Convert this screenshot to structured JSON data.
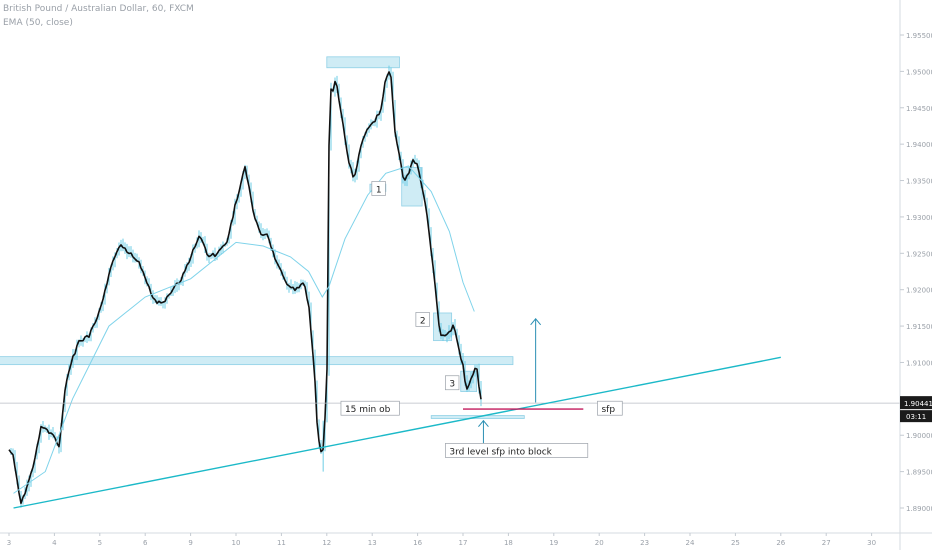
{
  "header": {
    "symbol": "British Pound / Australian Dollar, 60, FXCM",
    "indicator": "EMA (50, close)"
  },
  "chart_data": {
    "type": "candlestick",
    "yaxis": {
      "ticks": [
        "1.95500",
        "1.95000",
        "1.94500",
        "1.94000",
        "1.93500",
        "1.93000",
        "1.92500",
        "1.92000",
        "1.91500",
        "1.91000",
        "1.90500",
        "1.90000",
        "1.89500",
        "1.89000"
      ],
      "range": [
        1.8865,
        1.959
      ],
      "last_price": "1.90441",
      "countdown": "03:11"
    },
    "xaxis": {
      "ticks": [
        "3",
        "4",
        "5",
        "6",
        "9",
        "10",
        "11",
        "12",
        "13",
        "16",
        "17",
        "18",
        "19",
        "20",
        "23",
        "24",
        "25",
        "26",
        "27",
        "30"
      ]
    },
    "price_path": [
      [
        3.0,
        1.898
      ],
      [
        3.1,
        1.8972
      ],
      [
        3.25,
        1.8905
      ],
      [
        3.4,
        1.893
      ],
      [
        3.55,
        1.896
      ],
      [
        3.7,
        1.9012
      ],
      [
        3.85,
        1.9005
      ],
      [
        3.98,
        1.9
      ],
      [
        4.1,
        1.8985
      ],
      [
        4.25,
        1.907
      ],
      [
        4.4,
        1.9105
      ],
      [
        4.55,
        1.913
      ],
      [
        4.75,
        1.9135
      ],
      [
        4.95,
        1.916
      ],
      [
        5.1,
        1.9195
      ],
      [
        5.25,
        1.923
      ],
      [
        5.45,
        1.9265
      ],
      [
        5.65,
        1.925
      ],
      [
        5.85,
        1.924
      ],
      [
        6.0,
        1.9215
      ],
      [
        6.2,
        1.9185
      ],
      [
        6.4,
        1.918
      ],
      [
        6.6,
        1.92
      ],
      [
        6.8,
        1.9215
      ],
      [
        7.0,
        1.9245
      ],
      [
        7.2,
        1.9275
      ],
      [
        7.4,
        1.9245
      ],
      [
        7.6,
        1.925
      ],
      [
        7.8,
        1.9265
      ],
      [
        8.0,
        1.932
      ],
      [
        8.2,
        1.937
      ],
      [
        8.4,
        1.93
      ],
      [
        8.55,
        1.9275
      ],
      [
        8.7,
        1.9275
      ],
      [
        8.9,
        1.9235
      ],
      [
        9.1,
        1.921
      ],
      [
        9.3,
        1.92
      ],
      [
        9.5,
        1.921
      ],
      [
        9.6,
        1.918
      ],
      [
        9.72,
        1.9095
      ],
      [
        9.8,
        1.9
      ],
      [
        9.9,
        1.8965
      ],
      [
        10.0,
        1.906
      ],
      [
        10.06,
        1.948
      ],
      [
        10.12,
        1.947
      ],
      [
        10.2,
        1.949
      ],
      [
        10.35,
        1.943
      ],
      [
        10.45,
        1.9385
      ],
      [
        10.6,
        1.935
      ],
      [
        10.75,
        1.94
      ],
      [
        10.9,
        1.942
      ],
      [
        11.05,
        1.943
      ],
      [
        11.2,
        1.945
      ],
      [
        11.3,
        1.949
      ],
      [
        11.4,
        1.9505
      ],
      [
        11.5,
        1.942
      ],
      [
        11.6,
        1.9385
      ],
      [
        11.7,
        1.9345
      ],
      [
        11.8,
        1.936
      ],
      [
        11.9,
        1.938
      ],
      [
        12.0,
        1.937
      ],
      [
        12.1,
        1.934
      ],
      [
        12.2,
        1.9305
      ],
      [
        12.35,
        1.9225
      ],
      [
        12.5,
        1.9135
      ],
      [
        12.65,
        1.914
      ],
      [
        12.8,
        1.915
      ],
      [
        12.9,
        1.912
      ],
      [
        13.0,
        1.9095
      ],
      [
        13.08,
        1.906
      ],
      [
        13.18,
        1.908
      ],
      [
        13.3,
        1.9095
      ],
      [
        13.4,
        1.9045
      ]
    ],
    "ema": [
      [
        3.1,
        1.892
      ],
      [
        3.8,
        1.895
      ],
      [
        4.4,
        1.905
      ],
      [
        5.2,
        1.915
      ],
      [
        6.0,
        1.919
      ],
      [
        7.0,
        1.9215
      ],
      [
        8.0,
        1.9265
      ],
      [
        8.6,
        1.926
      ],
      [
        9.2,
        1.9245
      ],
      [
        9.6,
        1.9225
      ],
      [
        9.9,
        1.919
      ],
      [
        10.05,
        1.9205
      ],
      [
        10.4,
        1.927
      ],
      [
        10.9,
        1.933
      ],
      [
        11.3,
        1.936
      ],
      [
        11.8,
        1.937
      ],
      [
        12.3,
        1.9335
      ],
      [
        12.7,
        1.928
      ],
      [
        13.0,
        1.921
      ],
      [
        13.25,
        1.917
      ]
    ],
    "annotations": {
      "boxes": [
        {
          "x": [
            10.0,
            11.6
          ],
          "y": [
            1.9505,
            1.952
          ]
        },
        {
          "x": [
            2.2,
            14.1
          ],
          "y": [
            1.9097,
            1.9108
          ]
        },
        {
          "x": [
            10.95,
            11.3
          ],
          "y": [
            1.9335,
            1.9345
          ]
        },
        {
          "x": [
            11.65,
            12.1
          ],
          "y": [
            1.9315,
            1.9368
          ]
        },
        {
          "x": [
            12.35,
            12.75
          ],
          "y": [
            1.913,
            1.9168
          ]
        },
        {
          "x": [
            12.95,
            13.3
          ],
          "y": [
            1.906,
            1.9088
          ]
        },
        {
          "x": [
            12.3,
            14.35
          ],
          "y": [
            1.9023,
            1.9027
          ]
        }
      ],
      "labels": [
        {
          "text": "1",
          "x": 11.08,
          "y": 1.9335
        },
        {
          "text": "2",
          "x": 12.05,
          "y": 1.9155
        },
        {
          "text": "3",
          "x": 12.7,
          "y": 1.9068
        },
        {
          "text": "15 min ob",
          "x": 10.4,
          "y": 1.9033
        },
        {
          "text": "sfp",
          "x": 16.05,
          "y": 1.9033
        },
        {
          "text": "3rd level sfp into block",
          "x": 12.7,
          "y": 1.8975
        }
      ],
      "trendline": [
        [
          3.1,
          1.89
        ],
        [
          20.0,
          1.9107
        ]
      ],
      "red_line": {
        "x": [
          13.0,
          15.65
        ],
        "y": 1.9036
      },
      "arrows": [
        {
          "x": 14.6,
          "from": 1.9045,
          "to": 1.916
        },
        {
          "x": 13.45,
          "from": 1.8988,
          "to": 1.902
        }
      ]
    }
  }
}
